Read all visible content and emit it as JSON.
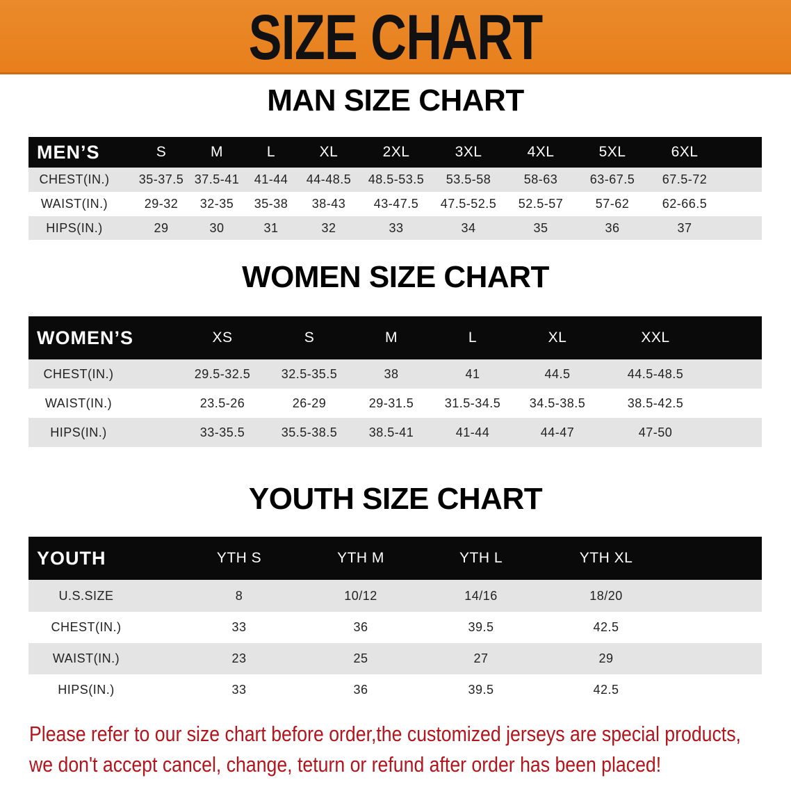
{
  "banner": {
    "title": "SIZE CHART",
    "color": "#e8821f"
  },
  "men": {
    "title": "MAN SIZE CHART",
    "header": [
      "MEN’S",
      "S",
      "M",
      "L",
      "XL",
      "2XL",
      "3XL",
      "4XL",
      "5XL",
      "6XL"
    ],
    "rows": [
      [
        "CHEST(IN.)",
        "35-37.5",
        "37.5-41",
        "41-44",
        "44-48.5",
        "48.5-53.5",
        "53.5-58",
        "58-63",
        "63-67.5",
        "67.5-72"
      ],
      [
        "WAIST(IN.)",
        "29-32",
        "32-35",
        "35-38",
        "38-43",
        "43-47.5",
        "47.5-52.5",
        "52.5-57",
        "57-62",
        "62-66.5"
      ],
      [
        "HIPS(IN.)",
        "29",
        "30",
        "31",
        "32",
        "33",
        "34",
        "35",
        "36",
        "37"
      ]
    ]
  },
  "women": {
    "title": "WOMEN SIZE CHART",
    "header": [
      "WOMEN’S",
      "XS",
      "S",
      "M",
      "L",
      "XL",
      "XXL"
    ],
    "rows": [
      [
        "CHEST(IN.)",
        "29.5-32.5",
        "32.5-35.5",
        "38",
        "41",
        "44.5",
        "44.5-48.5"
      ],
      [
        "WAIST(IN.)",
        "23.5-26",
        "26-29",
        "29-31.5",
        "31.5-34.5",
        "34.5-38.5",
        "38.5-42.5"
      ],
      [
        "HIPS(IN.)",
        "33-35.5",
        "35.5-38.5",
        "38.5-41",
        "41-44",
        "44-47",
        "47-50"
      ]
    ]
  },
  "youth": {
    "title": "YOUTH SIZE CHART",
    "header": [
      "YOUTH",
      "YTH S",
      "YTH M",
      "YTH L",
      "YTH XL"
    ],
    "rows": [
      [
        "U.S.SIZE",
        "8",
        "10/12",
        "14/16",
        "18/20"
      ],
      [
        "CHEST(IN.)",
        "33",
        "36",
        "39.5",
        "42.5"
      ],
      [
        "WAIST(IN.)",
        "23",
        "25",
        "27",
        "29"
      ],
      [
        "HIPS(IN.)",
        "33",
        "36",
        "39.5",
        "42.5"
      ]
    ]
  },
  "footer": {
    "line1": "Please refer to our size chart before order,the customized jerseys are special products,",
    "line2": "we don't accept cancel, change, teturn or refund after order has been placed!",
    "color": "#b3151c"
  }
}
